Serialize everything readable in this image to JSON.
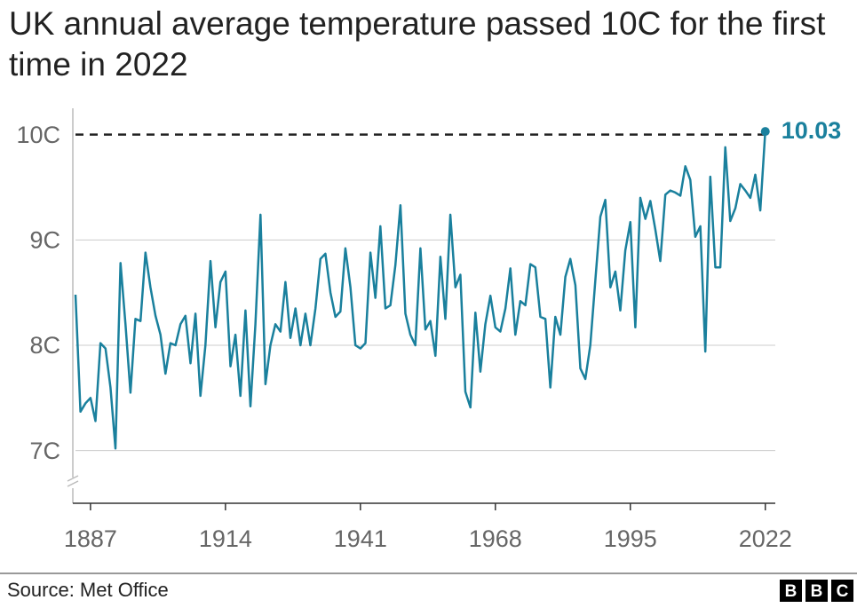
{
  "chart_data": {
    "type": "line",
    "title": "UK annual average temperature passed 10C for the first time in 2022",
    "source": "Source: Met Office",
    "logo": [
      "B",
      "B",
      "C"
    ],
    "color": "#1a809d",
    "reference_line": 10,
    "xlim": [
      1884,
      2024
    ],
    "ylim": [
      6.5,
      10.25
    ],
    "xticks": [
      1887,
      1914,
      1941,
      1968,
      1995,
      2022
    ],
    "yticks": [
      {
        "value": 7,
        "label": "7C"
      },
      {
        "value": 8,
        "label": "8C"
      },
      {
        "value": 9,
        "label": "9C"
      },
      {
        "value": 10,
        "label": "10C"
      }
    ],
    "x": [
      1884,
      1885,
      1886,
      1887,
      1888,
      1889,
      1890,
      1891,
      1892,
      1893,
      1894,
      1895,
      1896,
      1897,
      1898,
      1899,
      1900,
      1901,
      1902,
      1903,
      1904,
      1905,
      1906,
      1907,
      1908,
      1909,
      1910,
      1911,
      1912,
      1913,
      1914,
      1915,
      1916,
      1917,
      1918,
      1919,
      1920,
      1921,
      1922,
      1923,
      1924,
      1925,
      1926,
      1927,
      1928,
      1929,
      1930,
      1931,
      1932,
      1933,
      1934,
      1935,
      1936,
      1937,
      1938,
      1939,
      1940,
      1941,
      1942,
      1943,
      1944,
      1945,
      1946,
      1947,
      1948,
      1949,
      1950,
      1951,
      1952,
      1953,
      1954,
      1955,
      1956,
      1957,
      1958,
      1959,
      1960,
      1961,
      1962,
      1963,
      1964,
      1965,
      1966,
      1967,
      1968,
      1969,
      1970,
      1971,
      1972,
      1973,
      1974,
      1975,
      1976,
      1977,
      1978,
      1979,
      1980,
      1981,
      1982,
      1983,
      1984,
      1985,
      1986,
      1987,
      1988,
      1989,
      1990,
      1991,
      1992,
      1993,
      1994,
      1995,
      1996,
      1997,
      1998,
      1999,
      2000,
      2001,
      2002,
      2003,
      2004,
      2005,
      2006,
      2007,
      2008,
      2009,
      2010,
      2011,
      2012,
      2013,
      2014,
      2015,
      2016,
      2017,
      2018,
      2019,
      2020,
      2021,
      2022
    ],
    "values": [
      8.48,
      7.37,
      7.45,
      7.5,
      7.28,
      8.02,
      7.97,
      7.6,
      7.02,
      8.78,
      8.2,
      7.55,
      8.25,
      8.23,
      8.88,
      8.55,
      8.28,
      8.1,
      7.73,
      8.02,
      8.0,
      8.2,
      8.28,
      7.83,
      8.3,
      7.52,
      8.0,
      8.8,
      8.17,
      8.6,
      8.7,
      7.8,
      8.1,
      7.52,
      8.33,
      7.42,
      8.2,
      9.24,
      7.63,
      8.0,
      8.2,
      8.13,
      8.6,
      8.07,
      8.35,
      8.0,
      8.3,
      8.0,
      8.35,
      8.82,
      8.87,
      8.5,
      8.27,
      8.32,
      8.92,
      8.55,
      8.0,
      7.97,
      8.02,
      8.88,
      8.45,
      9.13,
      8.35,
      8.38,
      8.76,
      9.33,
      8.3,
      8.1,
      8.0,
      8.92,
      8.15,
      8.23,
      7.9,
      8.84,
      8.25,
      9.24,
      8.55,
      8.67,
      7.56,
      7.41,
      8.31,
      7.75,
      8.2,
      8.47,
      8.17,
      8.13,
      8.35,
      8.73,
      8.1,
      8.42,
      8.38,
      8.77,
      8.74,
      8.27,
      8.25,
      7.6,
      8.27,
      8.1,
      8.65,
      8.82,
      8.57,
      7.78,
      7.68,
      8.0,
      8.62,
      9.22,
      9.38,
      8.55,
      8.7,
      8.33,
      8.9,
      9.17,
      8.17,
      9.4,
      9.2,
      9.37,
      9.1,
      8.8,
      9.43,
      9.47,
      9.45,
      9.42,
      9.7,
      9.57,
      9.03,
      9.13,
      7.94,
      9.6,
      8.74,
      8.74,
      9.88,
      9.18,
      9.3,
      9.53,
      9.47,
      9.4,
      9.62,
      9.28,
      10.03
    ]
  }
}
